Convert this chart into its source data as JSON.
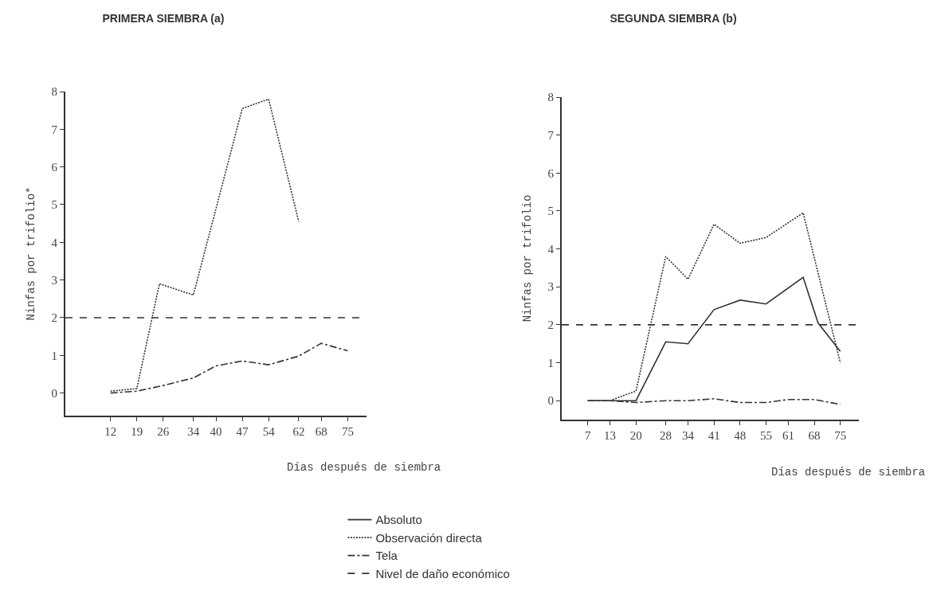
{
  "chart_data": [
    {
      "type": "line",
      "title": "PRIMERA SIEMBRA (a)",
      "xlabel": "Días después de siembra",
      "ylabel": "Ninfas por trifolio*",
      "xlim": [
        0,
        80
      ],
      "xticks": [
        12,
        19,
        26,
        34,
        40,
        47,
        54,
        62,
        68,
        75
      ],
      "ylim": [
        -0.6,
        8
      ],
      "yticks": [
        0,
        1,
        2,
        3,
        4,
        5,
        6,
        7,
        8
      ],
      "grid": false,
      "legend": false,
      "marker": "none",
      "series": [
        {
          "color": "#333333",
          "line_style": "dotted",
          "x": [
            12,
            19,
            25,
            34,
            47,
            54,
            62
          ],
          "values": [
            0.05,
            0.12,
            2.9,
            2.6,
            7.55,
            7.8,
            4.55
          ]
        },
        {
          "color": "#333333",
          "line_style": "dashdot",
          "x": [
            12,
            19,
            26,
            34,
            40,
            47,
            54,
            62,
            68,
            75
          ],
          "values": [
            0,
            0.05,
            0.2,
            0.4,
            0.72,
            0.85,
            0.75,
            0.98,
            1.32,
            1.12
          ]
        }
      ],
      "ref_lines": [
        {
          "axis": "y",
          "value": 2,
          "color": "#333333",
          "line_style": "dashed"
        }
      ]
    },
    {
      "type": "line",
      "title": "SEGUNDA SIEMBRA (b)",
      "xlabel": "Días después de siembra",
      "ylabel": "Ninfas por trifolio",
      "xlim": [
        0,
        80
      ],
      "xticks": [
        7,
        13,
        20,
        28,
        34,
        41,
        48,
        55,
        61,
        68,
        75
      ],
      "ylim": [
        -0.5,
        8
      ],
      "yticks": [
        0,
        1,
        2,
        3,
        4,
        5,
        6,
        7,
        8
      ],
      "grid": false,
      "legend": "bottom",
      "marker": "none",
      "series": [
        {
          "name": "Absoluto",
          "color": "#333333",
          "line_style": "solid",
          "x": [
            7,
            13,
            20,
            28,
            34,
            41,
            48,
            55,
            65,
            69,
            75
          ],
          "values": [
            0,
            0,
            0,
            1.55,
            1.5,
            2.4,
            2.65,
            2.55,
            3.25,
            2.05,
            1.3
          ]
        },
        {
          "name": "Observación directa",
          "color": "#333333",
          "line_style": "dotted",
          "x": [
            7,
            13,
            17,
            20,
            28,
            34,
            41,
            48,
            55,
            65,
            75
          ],
          "values": [
            0,
            0,
            0.15,
            0.25,
            3.8,
            3.2,
            4.65,
            4.15,
            4.3,
            4.95,
            1.0
          ]
        },
        {
          "name": "Tela",
          "color": "#333333",
          "line_style": "dashdot",
          "x": [
            7,
            13,
            20,
            28,
            34,
            41,
            48,
            55,
            61,
            68,
            75
          ],
          "values": [
            0,
            0,
            -0.05,
            0,
            0,
            0.05,
            -0.05,
            -0.05,
            0.03,
            0.03,
            -0.1
          ]
        }
      ],
      "ref_lines": [
        {
          "axis": "y",
          "value": 2,
          "label": "Nivel de daño económico",
          "color": "#333333",
          "line_style": "dashed"
        }
      ]
    }
  ]
}
